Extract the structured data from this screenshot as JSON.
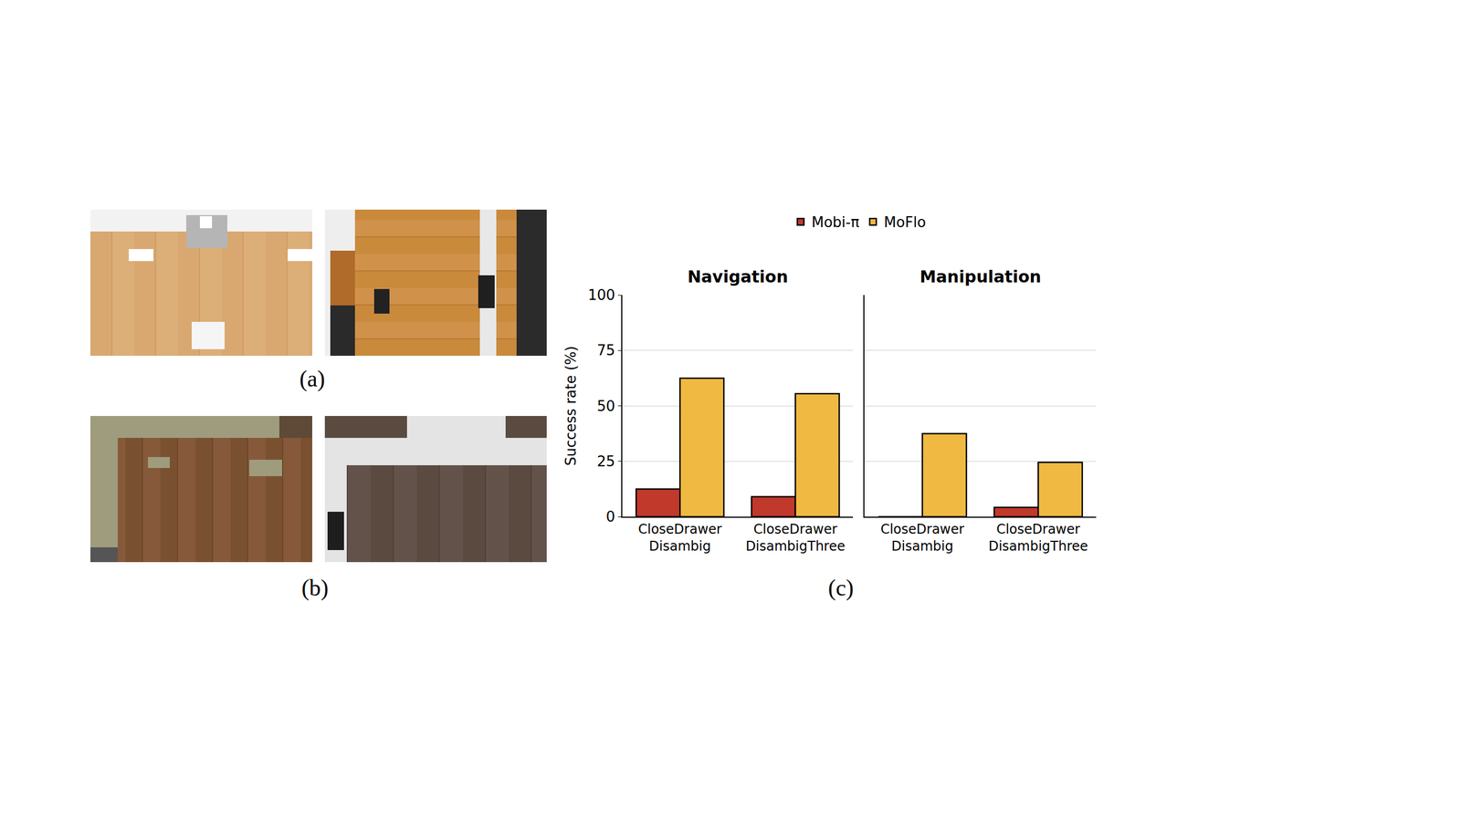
{
  "figure_labels": [
    "(a)",
    "(b)",
    "(c)"
  ],
  "chart_data": [
    {
      "type": "bar",
      "title": "Navigation",
      "y_label": "Success rate (%)",
      "categories": [
        "CloseDrawer Disambig",
        "CloseDrawer DisambigThree"
      ],
      "series": [
        {
          "name": "Mobi-π",
          "color": "#c0392b",
          "values": [
            12.5,
            9
          ]
        },
        {
          "name": "MoFlo",
          "color": "#f0b942",
          "values": [
            62.5,
            55.5
          ]
        }
      ],
      "ylim": [
        0,
        100
      ],
      "yticks": [
        0,
        25,
        50,
        75,
        100
      ],
      "grid": true,
      "legend": "top"
    },
    {
      "type": "bar",
      "title": "Manipulation",
      "categories": [
        "CloseDrawer Disambig",
        "CloseDrawer DisambigThree"
      ],
      "series": [
        {
          "name": "Mobi-π",
          "color": "#c0392b",
          "values": [
            0,
            4.2
          ]
        },
        {
          "name": "MoFlo",
          "color": "#f0b942",
          "values": [
            37.5,
            24.5
          ]
        }
      ],
      "ylim": [
        0,
        100
      ],
      "yticks": [
        0,
        25,
        50,
        75,
        100
      ],
      "grid": true,
      "tick_labels": "x"
    }
  ]
}
